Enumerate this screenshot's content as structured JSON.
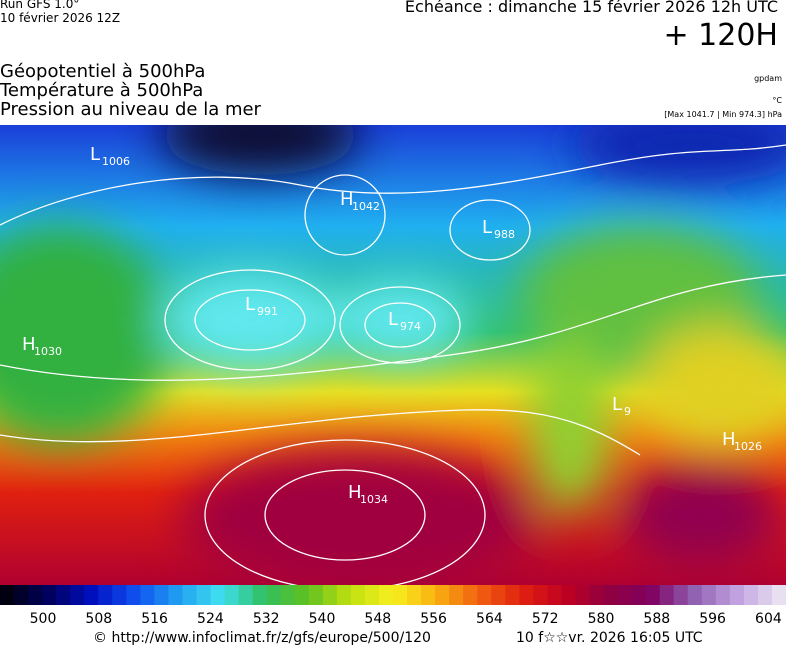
{
  "header": {
    "run": "Run GFS 1.0°",
    "run_date": "10 février 2026 12Z",
    "valid": "Echéance : dimanche 15 février 2026 12h UTC",
    "lead": "+ 120H",
    "fields": [
      "Géopotentiel à 500hPa",
      "Température à 500hPa",
      "Pression au niveau de la mer"
    ],
    "units": [
      "gpdam",
      "°C",
      "[Max 1041.7 | Min 974.3] hPa"
    ]
  },
  "map": {
    "centers": [
      {
        "kind": "L",
        "value": 1006
      },
      {
        "kind": "H",
        "value": 1042
      },
      {
        "kind": "L",
        "value": 988
      },
      {
        "kind": "L",
        "value": 991
      },
      {
        "kind": "L",
        "value": 974
      },
      {
        "kind": "H",
        "value": 1030
      },
      {
        "kind": "L",
        "value": 9
      },
      {
        "kind": "H",
        "value": 1026
      },
      {
        "kind": "H",
        "value": 1034
      }
    ]
  },
  "colorbar": {
    "ticks": [
      500,
      508,
      516,
      524,
      532,
      540,
      548,
      556,
      564,
      572,
      580,
      588,
      596,
      604
    ]
  },
  "footer": {
    "source": "© http://www.infoclimat.fr/z/gfs/europe/500/120",
    "stamp": "10 f☆☆vr. 2026 16:05 UTC"
  }
}
